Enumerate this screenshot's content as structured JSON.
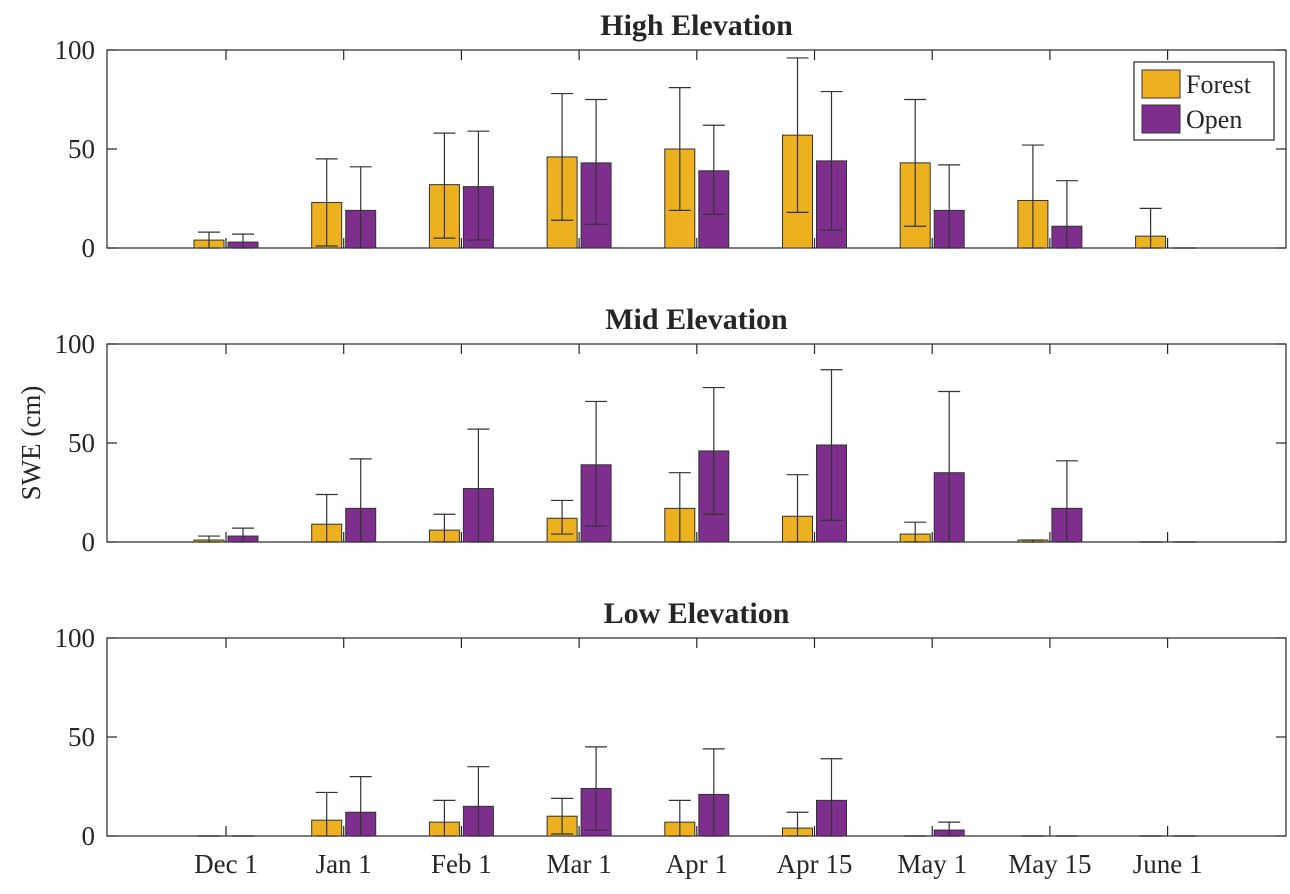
{
  "chart_data": {
    "type": "bar",
    "ylabel": "SWE (cm)",
    "ylim": [
      0,
      100
    ],
    "yticks": [
      0,
      50,
      100
    ],
    "categories": [
      "Dec 1",
      "Jan 1",
      "Feb 1",
      "Mar 1",
      "Apr 1",
      "Apr 15",
      "May 1",
      "May 15",
      "June 1"
    ],
    "legend": {
      "placement": "top-right",
      "entries": [
        {
          "name": "Forest",
          "color": "#EDB120"
        },
        {
          "name": "Open",
          "color": "#7E2F8E"
        }
      ]
    },
    "panels": [
      {
        "title": "High Elevation",
        "show_legend": true,
        "series": [
          {
            "name": "Forest",
            "color": "#EDB120",
            "values": [
              4,
              23,
              32,
              46,
              50,
              57,
              43,
              24,
              6
            ],
            "err_low": [
              0,
              1,
              5,
              14,
              19,
              18,
              11,
              0,
              0
            ],
            "err_high": [
              8,
              45,
              58,
              78,
              81,
              96,
              75,
              52,
              20
            ]
          },
          {
            "name": "Open",
            "color": "#7E2F8E",
            "values": [
              3,
              19,
              31,
              43,
              39,
              44,
              19,
              11,
              0
            ],
            "err_low": [
              0,
              0,
              4,
              12,
              17,
              9,
              0,
              0,
              0
            ],
            "err_high": [
              7,
              41,
              59,
              75,
              62,
              79,
              42,
              34,
              0
            ]
          }
        ]
      },
      {
        "title": "Mid Elevation",
        "show_legend": false,
        "series": [
          {
            "name": "Forest",
            "color": "#EDB120",
            "values": [
              1,
              9,
              6,
              12,
              17,
              13,
              4,
              1,
              0
            ],
            "err_low": [
              0,
              0,
              0,
              4,
              0,
              0,
              0,
              0,
              0
            ],
            "err_high": [
              3,
              24,
              14,
              21,
              35,
              34,
              10,
              1,
              0
            ]
          },
          {
            "name": "Open",
            "color": "#7E2F8E",
            "values": [
              3,
              17,
              27,
              39,
              46,
              49,
              35,
              17,
              0
            ],
            "err_low": [
              0,
              0,
              0,
              8,
              14,
              11,
              0,
              0,
              0
            ],
            "err_high": [
              7,
              42,
              57,
              71,
              78,
              87,
              76,
              41,
              0
            ]
          }
        ]
      },
      {
        "title": "Low Elevation",
        "show_legend": false,
        "series": [
          {
            "name": "Forest",
            "color": "#EDB120",
            "values": [
              0,
              8,
              7,
              10,
              7,
              4,
              0,
              0,
              0
            ],
            "err_low": [
              0,
              0,
              0,
              1,
              0,
              0,
              0,
              0,
              0
            ],
            "err_high": [
              0,
              22,
              18,
              19,
              18,
              12,
              0,
              0,
              0
            ]
          },
          {
            "name": "Open",
            "color": "#7E2F8E",
            "values": [
              0,
              12,
              15,
              24,
              21,
              18,
              3,
              0,
              0
            ],
            "err_low": [
              0,
              0,
              0,
              3,
              0,
              0,
              0,
              0,
              0
            ],
            "err_high": [
              0,
              30,
              35,
              45,
              44,
              39,
              7,
              0,
              0
            ]
          }
        ]
      }
    ]
  }
}
